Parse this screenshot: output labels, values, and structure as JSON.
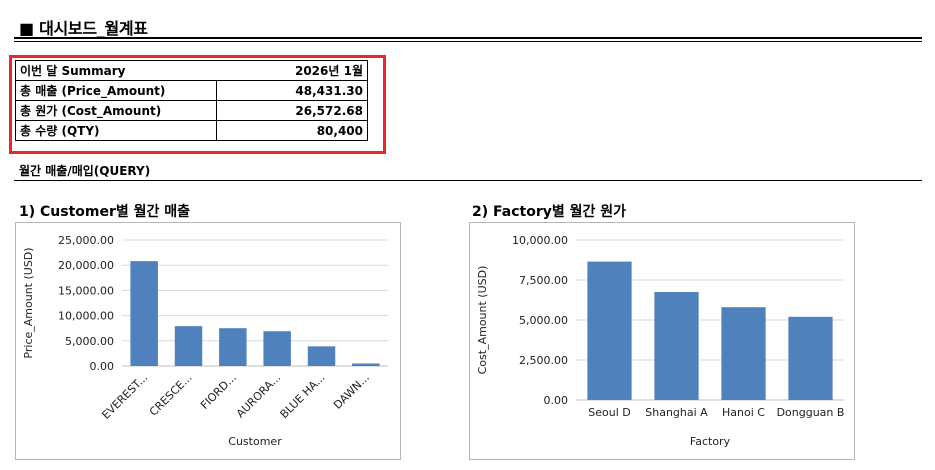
{
  "page": {
    "title": "■ 대시보드_월계표"
  },
  "summary": {
    "header_label": "이번 달 Summary",
    "header_value": "2026년 1월",
    "rows": [
      {
        "label": "총 매출 (Price_Amount)",
        "value": "48,431.30"
      },
      {
        "label": "총 원가 (Cost_Amount)",
        "value": "26,572.68"
      },
      {
        "label": "총 수량 (QTY)",
        "value": "80,400"
      }
    ]
  },
  "section": {
    "title": "월간 매출/매입(QUERY)"
  },
  "colors": {
    "bar": "#4f81bd",
    "highlight": "#e8262c",
    "grid": "#d9d9d9"
  },
  "chart_data": [
    {
      "type": "bar",
      "title": "1) Customer별 월간 매출",
      "xlabel": "Customer",
      "ylabel": "Price_Amount (USD)",
      "categories": [
        "EVEREST...",
        "CRESCE...",
        "FIORD...",
        "AURORA...",
        "BLUE HA...",
        "DAWN..."
      ],
      "values": [
        20800,
        7900,
        7500,
        6900,
        3900,
        500
      ],
      "ylim": [
        0,
        25000
      ],
      "yticks": [
        0,
        5000,
        10000,
        15000,
        20000,
        25000
      ],
      "ytick_labels": [
        "0.00",
        "5,000.00",
        "10,000.00",
        "15,000.00",
        "20,000.00",
        "25,000.00"
      ],
      "grid": true,
      "x_label_rotation": "rotated"
    },
    {
      "type": "bar",
      "title": "2) Factory별 월간 원가",
      "xlabel": "Factory",
      "ylabel": "Cost_Amount (USD)",
      "categories": [
        "Seoul D",
        "Shanghai A",
        "Hanoi C",
        "Dongguan B"
      ],
      "values": [
        8650,
        6750,
        5800,
        5200
      ],
      "ylim": [
        0,
        10000
      ],
      "yticks": [
        0,
        2500,
        5000,
        7500,
        10000
      ],
      "ytick_labels": [
        "0.00",
        "2,500.00",
        "5,000.00",
        "7,500.00",
        "10,000.00"
      ],
      "grid": true,
      "x_label_rotation": "horizontal"
    }
  ]
}
